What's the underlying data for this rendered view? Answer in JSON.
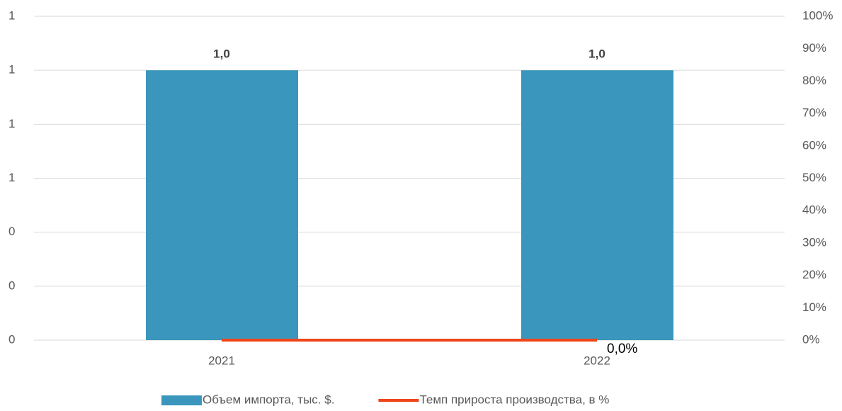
{
  "chart_data": {
    "type": "bar",
    "categories": [
      "2021",
      "2022"
    ],
    "series": [
      {
        "name": "Объем импорта, тыс. $.",
        "type": "bar",
        "color": "#3a96bc",
        "values": [
          1.0,
          1.0
        ],
        "value_labels": [
          "1,0",
          "1,0"
        ]
      },
      {
        "name": "Темп прироста производства, в %",
        "type": "line",
        "axis": "y2",
        "color": "#f0451a",
        "values": [
          0,
          0
        ],
        "value_labels": [
          null,
          "0,0%"
        ]
      }
    ],
    "ylim": [
      0,
      1.2
    ],
    "yticks": [
      0,
      {
        "value": 0.2,
        "label": "0"
      },
      {
        "value": 0.4,
        "label": "0"
      },
      {
        "value": 0.6,
        "label": "1"
      },
      {
        "value": 0.8,
        "label": "1"
      },
      1,
      {
        "value": 1.2,
        "label": "1"
      }
    ],
    "y2lim": [
      0,
      100
    ],
    "y2ticks": [
      {
        "value": 0,
        "label": "0%"
      },
      {
        "value": 10,
        "label": "10%"
      },
      {
        "value": 20,
        "label": "20%"
      },
      {
        "value": 30,
        "label": "30%"
      },
      {
        "value": 40,
        "label": "40%"
      },
      {
        "value": 50,
        "label": "50%"
      },
      {
        "value": 60,
        "label": "60%"
      },
      {
        "value": 70,
        "label": "70%"
      },
      {
        "value": 80,
        "label": "80%"
      },
      {
        "value": 90,
        "label": "90%"
      },
      {
        "value": 100,
        "label": "100%"
      }
    ],
    "grid": true,
    "legend": "bottom"
  }
}
